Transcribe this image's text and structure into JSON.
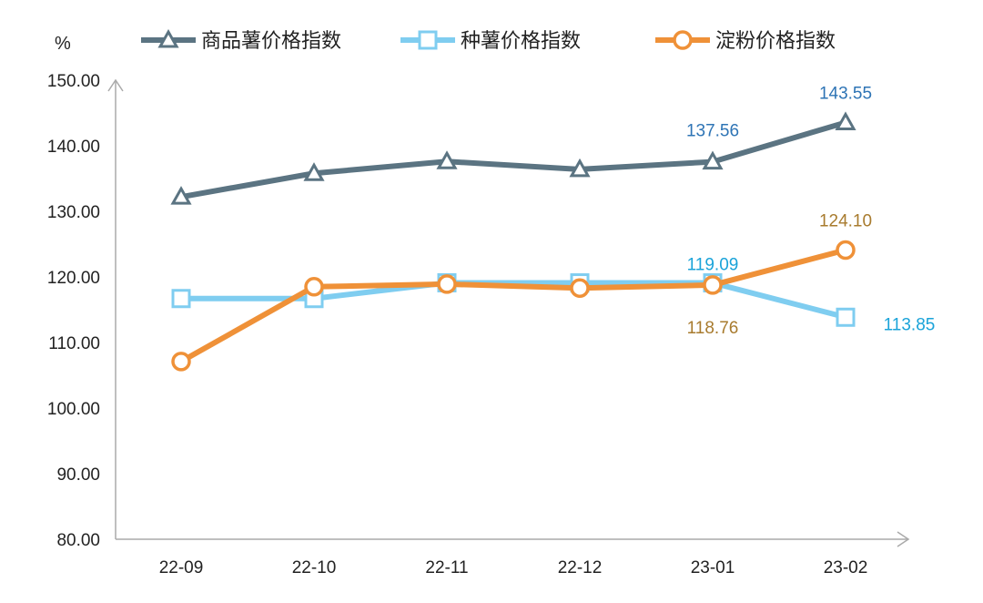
{
  "chart_data": {
    "type": "line",
    "ylabel": "%",
    "ylim": [
      80,
      150
    ],
    "yticks": [
      "80.00",
      "90.00",
      "100.00",
      "110.00",
      "120.00",
      "130.00",
      "140.00",
      "150.00"
    ],
    "categories": [
      "22-09",
      "22-10",
      "22-11",
      "22-12",
      "23-01",
      "23-02"
    ],
    "legend_position": "top",
    "grid": false,
    "series": [
      {
        "name": "商品薯价格指数",
        "color": "#5b7482",
        "marker": "triangle",
        "values": [
          132.2,
          135.8,
          137.6,
          136.4,
          137.56,
          143.55
        ],
        "labels": {
          "4": "137.56",
          "5": "143.55"
        },
        "label_color": "#2e74b5"
      },
      {
        "name": "种薯价格指数",
        "color": "#7fcdf0",
        "marker": "square",
        "values": [
          116.7,
          116.7,
          119.1,
          119.09,
          119.09,
          113.85
        ],
        "labels": {
          "4": "119.09",
          "5": "113.85"
        },
        "label_color": "#1aa3d9"
      },
      {
        "name": "淀粉价格指数",
        "color": "#ef9138",
        "marker": "circle",
        "values": [
          107.1,
          118.5,
          118.9,
          118.3,
          118.76,
          124.1
        ],
        "labels": {
          "4": "118.76",
          "5": "124.10"
        },
        "label_color": "#a87b2e"
      }
    ]
  }
}
